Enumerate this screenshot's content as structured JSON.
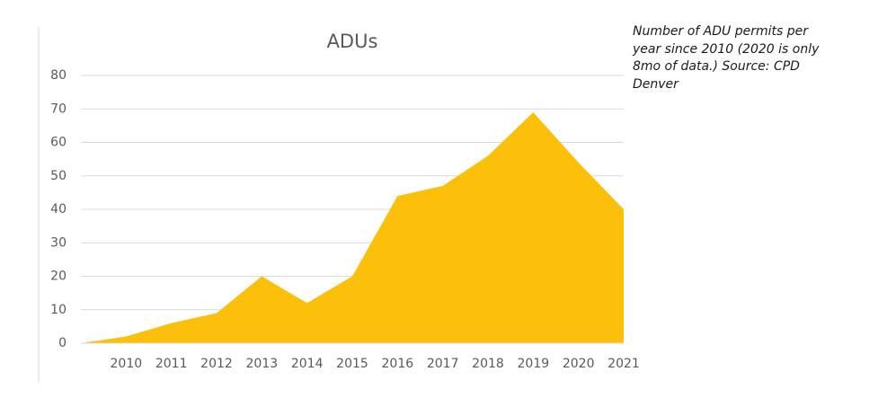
{
  "chart_data": {
    "type": "area",
    "title": "ADUs",
    "annotation": "Number of ADU permits per year since 2010 (2020 is only 8mo of data.) Source: CPD Denver",
    "categories": [
      null,
      "2010",
      "2011",
      "2012",
      "2013",
      "2014",
      "2015",
      "2016",
      "2017",
      "2018",
      "2019",
      "2020",
      "2021"
    ],
    "values": [
      0,
      2,
      6,
      9,
      20,
      12,
      20,
      44,
      47,
      56,
      69,
      54,
      40
    ],
    "color": "#fcbf0a",
    "ylim": [
      0,
      80
    ],
    "yticks": [
      0,
      10,
      20,
      30,
      40,
      50,
      60,
      70,
      80
    ],
    "grid": true
  }
}
